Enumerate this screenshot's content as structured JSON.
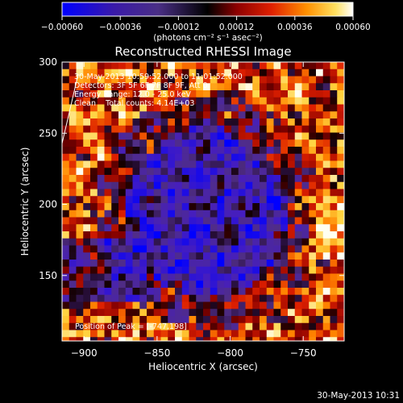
{
  "chart_data": {
    "type": "heatmap",
    "title": "Reconstructed RHESSI Image",
    "xlabel": "Heliocentric X (arcsec)",
    "ylabel": "Heliocentric Y (arcsec)",
    "xlim": [
      -915,
      -722
    ],
    "ylim": [
      104,
      300
    ],
    "x_ticks": [
      -900,
      -850,
      -800,
      -750
    ],
    "y_ticks": [
      150,
      200,
      250,
      300
    ],
    "colorbar": {
      "range": [
        -0.0006,
        0.0006
      ],
      "tick_values": [
        -0.0006,
        -0.00036,
        -0.00012,
        0.00012,
        0.00036,
        0.0006
      ],
      "tick_labels": [
        "-0.00060",
        "-0.00036",
        "-0.00012",
        "0.00012",
        "0.00036",
        "0.00060"
      ],
      "units_label": "(photons cm⁻² s⁻¹ asec⁻²)"
    },
    "annotations": [
      "30-May-2013 10:59:52.000 to 11:01:52.000",
      "Detectors: 3F 5F 6F 7F 8F 9F, Att 0",
      "Energy Range: 12.0 - 25.0 keV",
      "Clean    Total counts: 4.14E+03"
    ],
    "peak_label": "Position of Peak = [-747,198]",
    "peak_position": [
      -747,
      198
    ],
    "timestamp": "30-May-2013 10:31",
    "grid": false
  }
}
